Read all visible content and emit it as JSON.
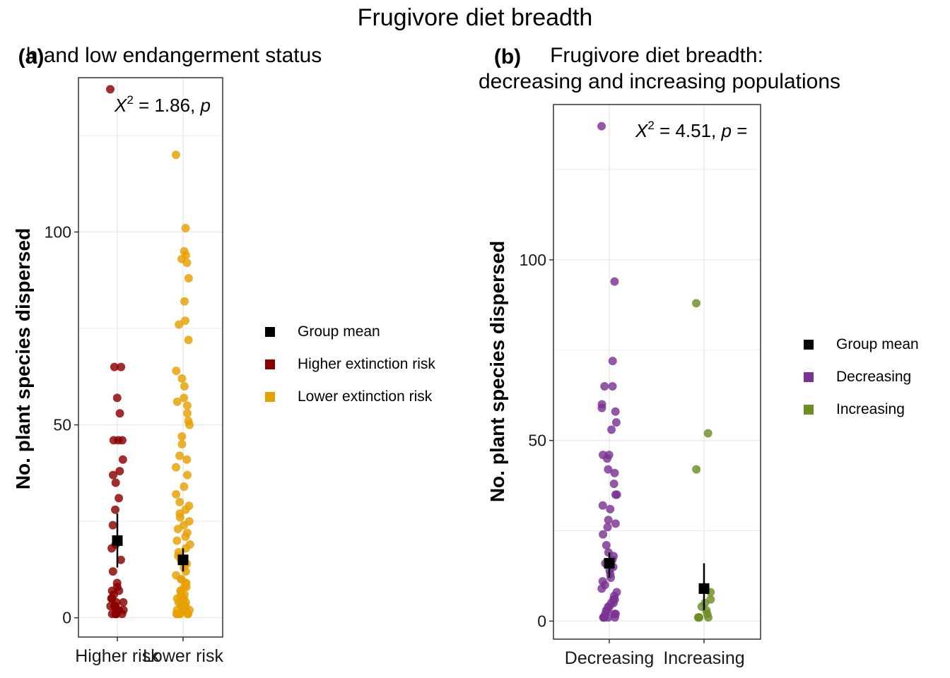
{
  "figure_title": "Frugivore diet breadth",
  "colors": {
    "higher_risk": "#8B0000",
    "lower_risk": "#E6A000",
    "decreasing": "#7B3294",
    "increasing": "#6B8E23",
    "mean": "#000000",
    "grid": "#EBEBEB"
  },
  "chart_data": [
    {
      "type": "scatter",
      "panel_tag": "(a)",
      "title_lines": [
        "h and low endangerment status"
      ],
      "stat_prefix": "X",
      "stat_sup": "2",
      "stat_value": " = 1.86, ",
      "stat_p": "p",
      "xlabel": "",
      "ylabel": "No. plant species dispersed",
      "ylim": [
        -5,
        140
      ],
      "yticks": [
        0,
        50,
        100
      ],
      "categories": [
        "Higher risk",
        "Lower risk"
      ],
      "legend": [
        "Group mean",
        "Higher extinction risk",
        "Lower extinction risk"
      ],
      "series": [
        {
          "name": "Higher extinction risk",
          "color_key": "higher_risk",
          "category_index": 0,
          "mean": 20,
          "ci": [
            13,
            27
          ],
          "values": [
            137,
            65,
            65,
            57,
            53,
            46,
            46,
            46,
            41,
            38,
            37,
            35,
            31,
            28,
            24,
            19,
            18,
            15,
            12,
            9,
            8,
            7,
            7,
            6,
            5,
            5,
            4,
            4,
            3,
            3,
            3,
            2,
            2,
            2,
            1,
            1,
            1,
            1,
            1,
            1
          ]
        },
        {
          "name": "Lower extinction risk",
          "color_key": "lower_risk",
          "category_index": 1,
          "mean": 15,
          "ci": [
            12,
            18
          ],
          "values": [
            120,
            101,
            95,
            94,
            93,
            92,
            88,
            82,
            77,
            76,
            72,
            64,
            62,
            60,
            57,
            56,
            55,
            53,
            51,
            50,
            47,
            45,
            42,
            41,
            39,
            37,
            34,
            32,
            30,
            29,
            28,
            27,
            26,
            25,
            24,
            23,
            22,
            21,
            20,
            19,
            18,
            17,
            16,
            15,
            14,
            13,
            12,
            11,
            10,
            10,
            9,
            9,
            8,
            8,
            7,
            7,
            6,
            6,
            5,
            5,
            5,
            4,
            4,
            4,
            3,
            3,
            3,
            3,
            2,
            2,
            2,
            2,
            1,
            1,
            1,
            1,
            1,
            1
          ]
        }
      ]
    },
    {
      "type": "scatter",
      "panel_tag": "(b)",
      "title_lines": [
        "Frugivore diet breadth:",
        "decreasing and increasing populations"
      ],
      "stat_prefix": "X",
      "stat_sup": "2",
      "stat_value": " = 4.51, ",
      "stat_p": "p",
      "stat_suffix": " =",
      "xlabel": "",
      "ylabel": "No. plant species dispersed",
      "ylim": [
        -5,
        143
      ],
      "yticks": [
        0,
        50,
        100
      ],
      "categories": [
        "Decreasing",
        "Increasing"
      ],
      "legend": [
        "Group mean",
        "Decreasing",
        "Increasing"
      ],
      "series": [
        {
          "name": "Decreasing",
          "color_key": "decreasing",
          "category_index": 0,
          "mean": 16,
          "ci": [
            12,
            19
          ],
          "values": [
            137,
            94,
            72,
            65,
            65,
            60,
            59,
            58,
            55,
            53,
            46,
            46,
            45,
            42,
            41,
            38,
            35,
            35,
            32,
            31,
            28,
            27,
            26,
            24,
            21,
            19,
            18,
            17,
            16,
            15,
            14,
            13,
            12,
            11,
            10,
            9,
            8,
            7,
            6,
            6,
            5,
            5,
            4,
            4,
            3,
            3,
            2,
            2,
            2,
            1,
            1,
            1,
            1,
            1
          ]
        },
        {
          "name": "Increasing",
          "color_key": "increasing",
          "category_index": 1,
          "mean": 9,
          "ci": [
            3,
            16
          ],
          "values": [
            88,
            52,
            42,
            8,
            6,
            5,
            4,
            3,
            2,
            1,
            1,
            1,
            1
          ]
        }
      ]
    }
  ]
}
